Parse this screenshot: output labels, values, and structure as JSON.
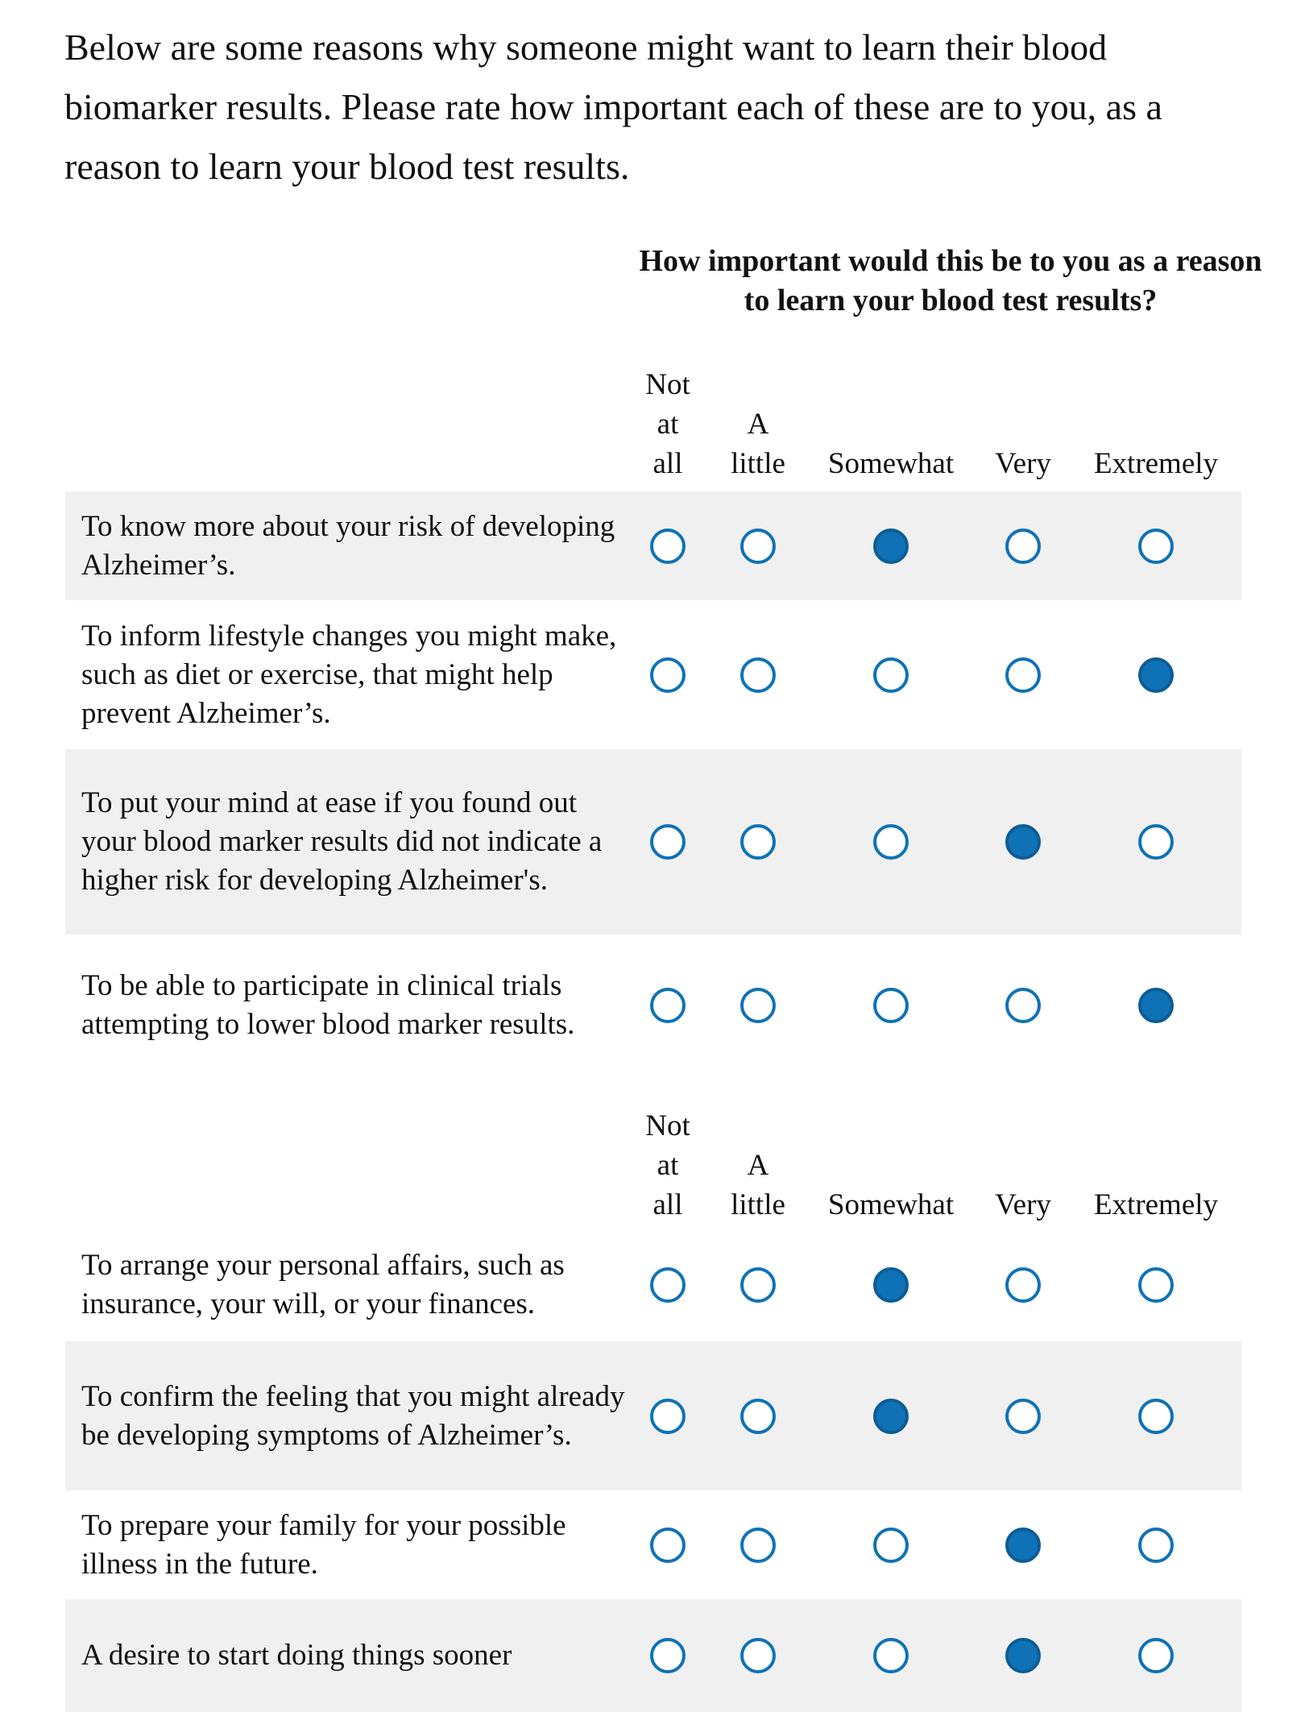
{
  "intro": "Below are some reasons why someone might want to learn their blood biomarker results. Please rate how important each of these are to you, as a reason to learn your blood test results.",
  "matrix_title": "How important would this be to you as a reason to learn your blood test results?",
  "scale": [
    "Not\nat\nall",
    "A\nlittle",
    "Somewhat",
    "Very",
    "Extremely"
  ],
  "accent_color": "#0f72b6",
  "statements": [
    {
      "text": "To know more about your risk of developing Alzheimer’s.",
      "selected": "Somewhat"
    },
    {
      "text": "To inform lifestyle changes you might make, such as diet or exercise, that might help prevent Alzheimer’s.",
      "selected": "Extremely"
    },
    {
      "text": "To put your mind at ease if you found out your blood marker results did not indicate a higher risk for developing Alzheimer's.",
      "selected": "Very"
    },
    {
      "text": "To be able to participate in clinical trials attempting to lower blood marker results.",
      "selected": "Extremely"
    },
    {
      "text": "To arrange your personal affairs, such as insurance, your will, or your finances.",
      "selected": "Somewhat"
    },
    {
      "text": "To confirm the feeling that you might already be developing symptoms of Alzheimer’s.",
      "selected": "Somewhat"
    },
    {
      "text": "To prepare your family for your possible illness in the future.",
      "selected": "Very"
    },
    {
      "text": "A desire to start doing things sooner",
      "selected": "Very"
    }
  ]
}
